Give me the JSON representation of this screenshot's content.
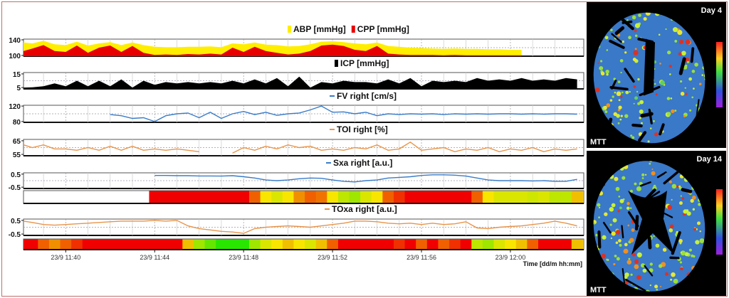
{
  "chart_data": {
    "type": "line",
    "x_unit": "minutes after 23/9 11:38",
    "x": [
      0,
      0.5,
      1,
      1.5,
      2,
      2.5,
      3,
      3.5,
      4,
      4.5,
      5,
      5.5,
      6,
      6.5,
      7,
      7.5,
      8,
      8.5,
      9,
      9.5,
      10,
      10.5,
      11,
      11.5,
      12,
      12.5,
      13,
      13.5,
      14,
      14.5,
      15,
      15.5,
      16,
      16.5,
      17,
      17.5,
      18,
      18.5,
      19,
      19.5,
      20,
      20.5,
      21,
      21.5,
      22,
      22.5,
      23,
      23.5,
      24,
      24.5,
      25
    ],
    "xlim": [
      0.1,
      25.3
    ],
    "xticks": [
      2,
      6,
      10,
      14,
      18,
      22
    ],
    "xtick_labels": [
      "23/9 11:40",
      "23/9 11:44",
      "23/9 11:48",
      "23/9 11:52",
      "23/9 11:56",
      "23/9 12:00"
    ],
    "xlabel": "Time [dd/m hh:mm]",
    "grid": true,
    "panels": [
      {
        "title_parts": [
          "ABP [mmHg]",
          "CPP [mmHg]"
        ],
        "type": "area",
        "yticks": [
          100,
          140
        ],
        "ylim": [
          100,
          140
        ],
        "series": [
          {
            "name": "ABP [mmHg]",
            "color": "#ffee00",
            "values": [
              132,
              130,
              136,
              128,
              126,
              134,
              125,
              130,
              133,
              126,
              132,
              126,
              122,
              121,
              121,
              122,
              122,
              123,
              121,
              130,
              128,
              132,
              127,
              126,
              123,
              124,
              128,
              134,
              135,
              133,
              130,
              128,
              132,
              124,
              122,
              120,
              119,
              118,
              117,
              118,
              117,
              117,
              116,
              116,
              115,
              115,
              null,
              null,
              null,
              null,
              null
            ]
          },
          {
            "name": "CPP [mmHg]",
            "color": "#e80000",
            "values": [
              112,
              118,
              126,
              112,
              110,
              125,
              108,
              120,
              125,
              110,
              124,
              108,
              103,
              104,
              103,
              105,
              104,
              106,
              104,
              120,
              110,
              122,
              112,
              108,
              104,
              106,
              112,
              125,
              127,
              124,
              115,
              112,
              124,
              106,
              104,
              103,
              103,
              103,
              102,
              103,
              102,
              102,
              102,
              102,
              102,
              102,
              null,
              null,
              null,
              null,
              null
            ]
          }
        ]
      },
      {
        "title_parts": [
          "ICP [mmHg]"
        ],
        "type": "area",
        "yticks": [
          5,
          15
        ],
        "ylim": [
          4,
          16
        ],
        "series": [
          {
            "name": "ICP [mmHg]",
            "color": "#000000",
            "values": [
              5,
              5.2,
              6,
              8,
              6,
              10,
              6,
              10,
              6,
              11,
              5,
              10,
              7,
              9,
              8,
              9,
              8,
              9,
              8,
              10,
              8,
              11,
              8,
              12,
              6,
              13,
              5,
              9,
              8,
              10,
              9,
              9,
              8,
              11,
              8,
              12,
              6,
              10,
              9,
              10,
              9,
              12,
              10,
              11,
              10,
              12,
              10,
              11,
              10,
              12,
              11
            ]
          }
        ]
      },
      {
        "title_parts": [
          "FV right [cm/s]"
        ],
        "type": "line",
        "yticks": [
          80,
          120
        ],
        "ylim": [
          78,
          122
        ],
        "series": [
          {
            "name": "FV right [cm/s]",
            "color": "#3a7cc8",
            "values": [
              null,
              null,
              null,
              null,
              null,
              null,
              null,
              null,
              98,
              95,
              88,
              90,
              80,
              95,
              100,
              102,
              90,
              104,
              88,
              100,
              106,
              98,
              104,
              96,
              100,
              102,
              110,
              120,
              104,
              105,
              100,
              104,
              95,
              100,
              98,
              100,
              99,
              100,
              98,
              100,
              99,
              100,
              99,
              100,
              100,
              99,
              100,
              99,
              100,
              100,
              99
            ]
          }
        ]
      },
      {
        "title_parts": [
          "TOI right [%]"
        ],
        "type": "line",
        "yticks": [
          55,
          65
        ],
        "ylim": [
          54,
          66
        ],
        "series": [
          {
            "name": "TOI right [%]",
            "color": "#e8944a",
            "values": [
              62,
              60,
              62,
              59,
              59,
              58,
              60,
              58,
              61,
              58,
              61,
              58,
              59,
              58,
              59,
              58,
              57,
              null,
              null,
              56,
              60,
              58,
              61,
              59,
              62,
              60,
              61,
              58,
              59,
              58,
              60,
              59,
              62,
              58,
              59,
              64,
              58,
              59,
              60,
              57,
              59,
              58,
              60,
              57,
              59,
              58,
              60,
              57,
              59,
              58,
              59
            ]
          }
        ]
      },
      {
        "title_parts": [
          "Sxa right [a.u.]"
        ],
        "type": "line",
        "yticks": [
          -0.5,
          0.5
        ],
        "ylim": [
          -0.6,
          0.6
        ],
        "colorbar": true,
        "series": [
          {
            "name": "Sxa right [a.u.]",
            "color": "#3a7cc8",
            "values": [
              null,
              null,
              null,
              null,
              null,
              null,
              null,
              null,
              null,
              null,
              null,
              null,
              0.4,
              0.4,
              0.38,
              0.38,
              0.36,
              0.36,
              0.35,
              0.38,
              0.3,
              0.2,
              0.05,
              0.0,
              0.05,
              0.15,
              0.2,
              0.18,
              0.05,
              -0.05,
              -0.1,
              0.0,
              0.05,
              0.2,
              0.25,
              0.3,
              0.4,
              0.45,
              0.45,
              0.42,
              0.35,
              0.2,
              0.05,
              0.0,
              0.0,
              0.0,
              -0.02,
              0.0,
              -0.05,
              -0.05,
              0.1
            ]
          }
        ]
      },
      {
        "title_parts": [
          "TOxa right [a.u.]"
        ],
        "type": "line",
        "yticks": [
          -0.5,
          0.5
        ],
        "ylim": [
          -0.6,
          0.6
        ],
        "colorbar": true,
        "series": [
          {
            "name": "TOxa right [a.u.]",
            "color": "#e8944a",
            "values": [
              0.45,
              0.35,
              0.2,
              0.15,
              0.2,
              0.25,
              0.3,
              0.35,
              0.4,
              0.45,
              0.45,
              0.45,
              0.5,
              0.45,
              0.5,
              0.1,
              -0.1,
              -0.2,
              -0.3,
              -0.35,
              -0.45,
              -0.1,
              0.0,
              0.05,
              0.1,
              0.05,
              0.0,
              0.1,
              0.2,
              0.3,
              0.45,
              0.45,
              0.4,
              0.3,
              0.25,
              0.3,
              0.2,
              0.3,
              0.2,
              0.25,
              0.4,
              -0.05,
              -0.1,
              0.0,
              0.05,
              0.1,
              0.2,
              0.3,
              0.45,
              0.3,
              0.1
            ]
          }
        ]
      }
    ]
  },
  "images": [
    {
      "day_label": "Day 4",
      "map_label": "MTT"
    },
    {
      "day_label": "Day 14",
      "map_label": "MTT"
    }
  ]
}
